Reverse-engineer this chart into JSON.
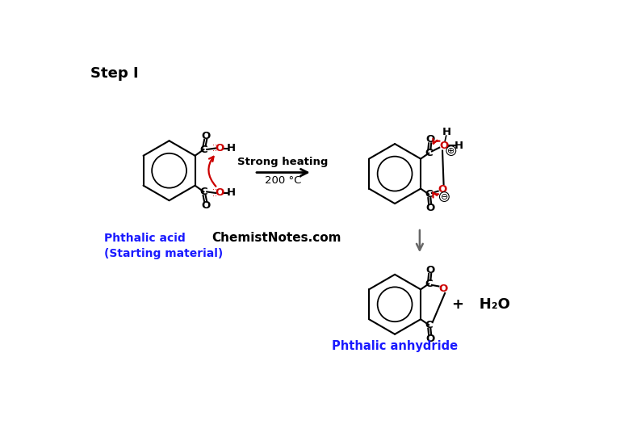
{
  "title": "Step I",
  "label_phthalic": "Phthalic acid\n(Starting material)",
  "label_anhydride": "Phthalic anhydride",
  "label_watermark": "ChemistNotes.com",
  "label_strong_heating": "Strong heating",
  "label_temp": "200 °C",
  "label_h2o": "+   H₂O",
  "bg_color": "#ffffff",
  "blue_color": "#1a1aff",
  "red_color": "#cc0000",
  "black_color": "#000000",
  "gray_color": "#666666"
}
